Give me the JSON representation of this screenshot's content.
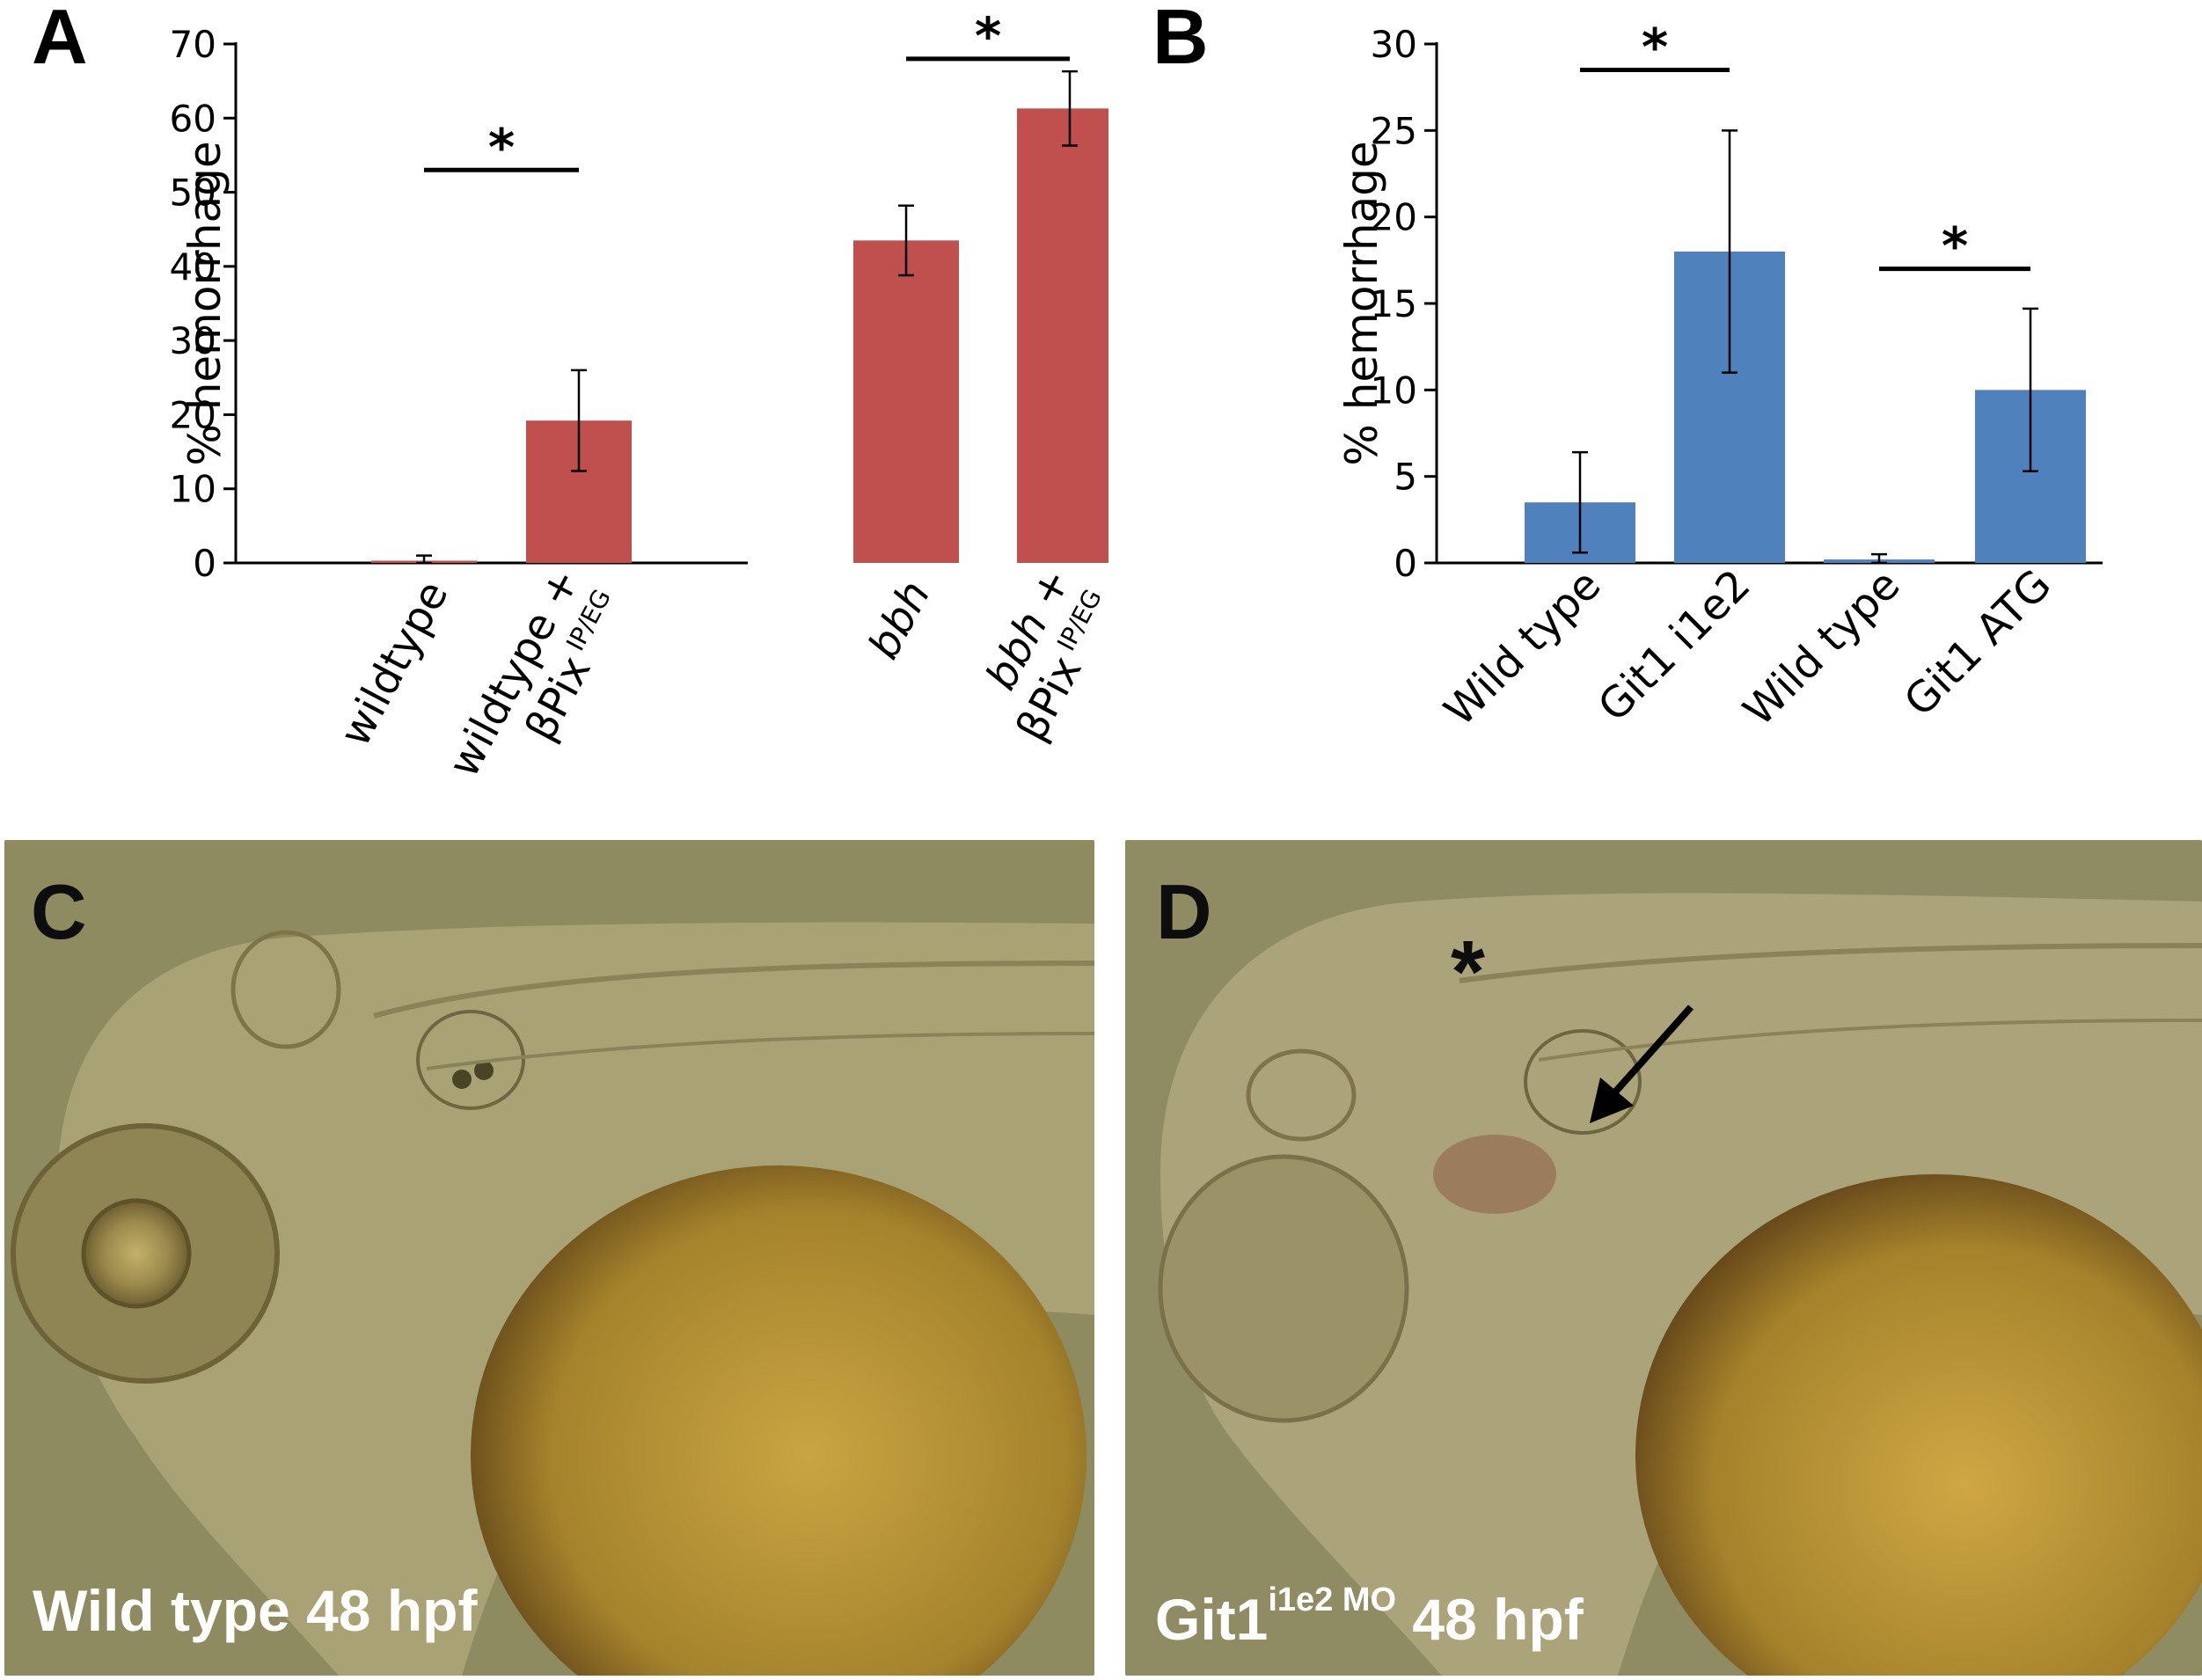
{
  "panels": {
    "a": {
      "letter": "A"
    },
    "b": {
      "letter": "B"
    },
    "c": {
      "letter": "C",
      "caption": "Wild type 48 hpf"
    },
    "d": {
      "letter": "D",
      "caption_main": "Git1",
      "caption_sup": "i1e2 MO",
      "caption_tail": " 48 hpf",
      "marker": "*"
    }
  },
  "colors": {
    "bar_a": "#c0504d",
    "bar_b": "#4f81bd",
    "photo_bg": "#8f8c62",
    "yolk": "#b48f33"
  },
  "chart_data": [
    {
      "id": "A",
      "type": "bar",
      "ylabel": "% hemorrhage",
      "ylim": [
        0,
        70
      ],
      "yticks": [
        0,
        10,
        20,
        30,
        40,
        50,
        60,
        70
      ],
      "categories": [
        {
          "line1": "wildtype",
          "line2": "",
          "sub": ""
        },
        {
          "line1": "wildtype +",
          "line2": "βPix",
          "sub": "IP/EG"
        },
        {
          "line1": "bbh",
          "line2": "",
          "sub": "",
          "italic": true
        },
        {
          "line1": "bbh +",
          "line2": "βPix",
          "sub": "IP/EG",
          "italic": true
        }
      ],
      "values": [
        0.3,
        19.2,
        43.5,
        61.3
      ],
      "errors": [
        0.7,
        6.8,
        4.7,
        5.0
      ],
      "significance": [
        {
          "between": [
            0,
            1
          ],
          "level": 53,
          "label": "*"
        },
        {
          "between": [
            2,
            3
          ],
          "level": 68,
          "label": "*"
        }
      ],
      "grid": false
    },
    {
      "id": "B",
      "type": "bar",
      "ylabel": "% hemorrhage",
      "ylim": [
        0,
        30
      ],
      "yticks": [
        0,
        5,
        10,
        15,
        20,
        25,
        30
      ],
      "categories": [
        {
          "line1": "Wild type"
        },
        {
          "line1": "Git1 i1e2"
        },
        {
          "line1": "Wild type"
        },
        {
          "line1": "Git1 ATG"
        }
      ],
      "values": [
        3.5,
        18.0,
        0.2,
        10.0
      ],
      "errors": [
        2.9,
        7.0,
        0.3,
        4.7
      ],
      "significance": [
        {
          "between": [
            0,
            1
          ],
          "level": 28.5,
          "label": "*"
        },
        {
          "between": [
            2,
            3
          ],
          "level": 17.0,
          "label": "*"
        }
      ],
      "grid": false
    }
  ]
}
